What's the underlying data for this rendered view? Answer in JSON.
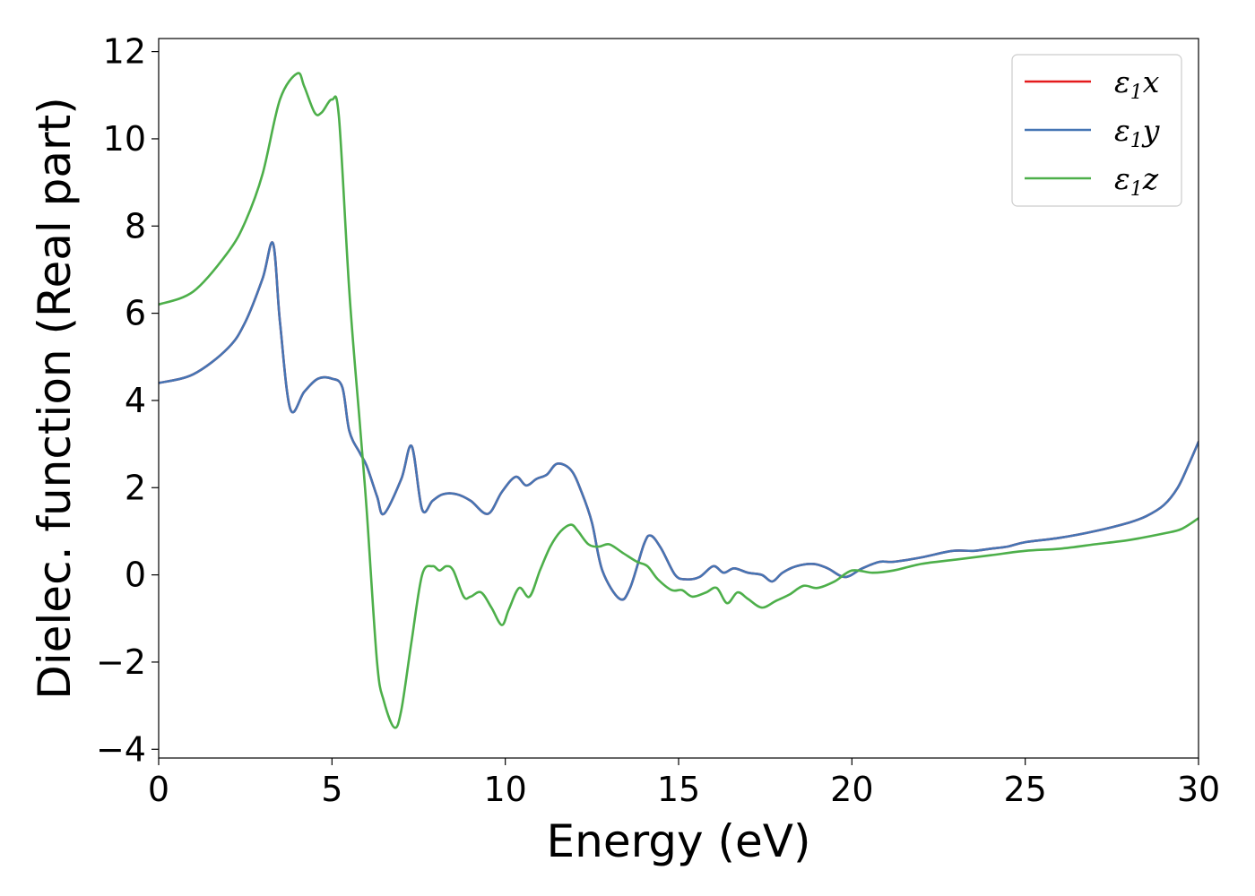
{
  "chart_data": {
    "type": "line",
    "title": "",
    "xlabel": "Energy (eV)",
    "ylabel": "Dielec. function (Real part)",
    "xlim": [
      0,
      30
    ],
    "ylim": [
      -4.2,
      12.3
    ],
    "xticks": [
      0,
      5,
      10,
      15,
      20,
      25,
      30
    ],
    "yticks": [
      -4,
      -2,
      0,
      2,
      4,
      6,
      8,
      10,
      12
    ],
    "xtick_labels": [
      "0",
      "5",
      "10",
      "15",
      "20",
      "25",
      "30"
    ],
    "ytick_labels": [
      "−4",
      "−2",
      "0",
      "2",
      "4",
      "6",
      "8",
      "10",
      "12"
    ],
    "grid": false,
    "legend_position": "top-right",
    "series": [
      {
        "name": "ε1x",
        "legend_main": "ε",
        "legend_sub": "1",
        "legend_var": "x",
        "color": "#e41a1c",
        "x": [
          0,
          1,
          2,
          2.5,
          3,
          3.3,
          3.5,
          3.8,
          4.2,
          4.6,
          5.0,
          5.3,
          5.5,
          5.8,
          6.0,
          6.3,
          6.5,
          7.0,
          7.3,
          7.6,
          7.9,
          8.2,
          8.6,
          9.0,
          9.5,
          9.9,
          10.3,
          10.6,
          10.9,
          11.2,
          11.5,
          11.9,
          12.2,
          12.5,
          12.8,
          13.3,
          13.6,
          14.0,
          14.2,
          14.5,
          14.9,
          15.2,
          15.6,
          16.0,
          16.3,
          16.6,
          17.0,
          17.4,
          17.7,
          18.0,
          18.4,
          18.9,
          19.3,
          19.8,
          20.3,
          20.8,
          21.2,
          22.0,
          22.9,
          23.5,
          24.0,
          24.5,
          25.0,
          26.0,
          27.0,
          28.0,
          28.5,
          29.0,
          29.4,
          29.7,
          30.0
        ],
        "values": [
          4.4,
          4.6,
          5.2,
          5.8,
          6.8,
          7.6,
          5.8,
          3.8,
          4.2,
          4.5,
          4.5,
          4.3,
          3.3,
          2.8,
          2.5,
          1.8,
          1.4,
          2.2,
          2.95,
          1.5,
          1.7,
          1.85,
          1.85,
          1.7,
          1.4,
          1.9,
          2.25,
          2.05,
          2.2,
          2.3,
          2.55,
          2.4,
          1.9,
          1.2,
          0.1,
          -0.55,
          -0.3,
          0.7,
          0.9,
          0.6,
          0.0,
          -0.1,
          -0.05,
          0.2,
          0.05,
          0.15,
          0.05,
          0.0,
          -0.15,
          0.05,
          0.2,
          0.25,
          0.15,
          -0.05,
          0.15,
          0.3,
          0.3,
          0.4,
          0.55,
          0.55,
          0.6,
          0.65,
          0.75,
          0.85,
          1.0,
          1.2,
          1.35,
          1.6,
          2.0,
          2.5,
          3.05
        ]
      },
      {
        "name": "ε1y",
        "legend_main": "ε",
        "legend_sub": "1",
        "legend_var": "y",
        "color": "#4575b4",
        "x": [
          0,
          1,
          2,
          2.5,
          3,
          3.3,
          3.5,
          3.8,
          4.2,
          4.6,
          5.0,
          5.3,
          5.5,
          5.8,
          6.0,
          6.3,
          6.5,
          7.0,
          7.3,
          7.6,
          7.9,
          8.2,
          8.6,
          9.0,
          9.5,
          9.9,
          10.3,
          10.6,
          10.9,
          11.2,
          11.5,
          11.9,
          12.2,
          12.5,
          12.8,
          13.3,
          13.6,
          14.0,
          14.2,
          14.5,
          14.9,
          15.2,
          15.6,
          16.0,
          16.3,
          16.6,
          17.0,
          17.4,
          17.7,
          18.0,
          18.4,
          18.9,
          19.3,
          19.8,
          20.3,
          20.8,
          21.2,
          22.0,
          22.9,
          23.5,
          24.0,
          24.5,
          25.0,
          26.0,
          27.0,
          28.0,
          28.5,
          29.0,
          29.4,
          29.7,
          30.0
        ],
        "values": [
          4.4,
          4.6,
          5.2,
          5.8,
          6.8,
          7.6,
          5.8,
          3.8,
          4.2,
          4.5,
          4.5,
          4.3,
          3.3,
          2.8,
          2.5,
          1.8,
          1.4,
          2.2,
          2.95,
          1.5,
          1.7,
          1.85,
          1.85,
          1.7,
          1.4,
          1.9,
          2.25,
          2.05,
          2.2,
          2.3,
          2.55,
          2.4,
          1.9,
          1.2,
          0.1,
          -0.55,
          -0.3,
          0.7,
          0.9,
          0.6,
          0.0,
          -0.1,
          -0.05,
          0.2,
          0.05,
          0.15,
          0.05,
          0.0,
          -0.15,
          0.05,
          0.2,
          0.25,
          0.15,
          -0.05,
          0.15,
          0.3,
          0.3,
          0.4,
          0.55,
          0.55,
          0.6,
          0.65,
          0.75,
          0.85,
          1.0,
          1.2,
          1.35,
          1.6,
          2.0,
          2.5,
          3.05
        ]
      },
      {
        "name": "ε1z",
        "legend_main": "ε",
        "legend_sub": "1",
        "legend_var": "z",
        "color": "#4daf4a",
        "x": [
          0,
          1,
          2,
          2.5,
          3,
          3.5,
          4.0,
          4.2,
          4.5,
          4.7,
          5.0,
          5.2,
          5.5,
          5.8,
          6.0,
          6.3,
          6.5,
          6.8,
          7.0,
          7.3,
          7.6,
          7.9,
          8.1,
          8.3,
          8.5,
          8.8,
          9.0,
          9.3,
          9.6,
          9.9,
          10.1,
          10.4,
          10.7,
          11.0,
          11.3,
          11.6,
          11.9,
          12.1,
          12.4,
          12.7,
          13.0,
          13.4,
          13.8,
          14.1,
          14.4,
          14.8,
          15.1,
          15.4,
          15.8,
          16.1,
          16.4,
          16.7,
          17.0,
          17.4,
          17.8,
          18.2,
          18.6,
          19.0,
          19.5,
          20.0,
          20.6,
          21.2,
          22.0,
          23.0,
          24.0,
          25.0,
          26.0,
          27.0,
          28.0,
          29.0,
          29.5,
          30.0
        ],
        "values": [
          6.2,
          6.5,
          7.4,
          8.1,
          9.2,
          10.9,
          11.5,
          11.2,
          10.6,
          10.6,
          10.9,
          10.5,
          6.5,
          3.5,
          1.5,
          -2.0,
          -2.9,
          -3.5,
          -3.1,
          -1.5,
          0.0,
          0.2,
          0.1,
          0.2,
          0.1,
          -0.5,
          -0.5,
          -0.4,
          -0.75,
          -1.15,
          -0.8,
          -0.3,
          -0.5,
          0.1,
          0.65,
          1.0,
          1.15,
          1.0,
          0.7,
          0.65,
          0.7,
          0.5,
          0.3,
          0.2,
          -0.1,
          -0.35,
          -0.35,
          -0.5,
          -0.4,
          -0.3,
          -0.65,
          -0.4,
          -0.55,
          -0.75,
          -0.6,
          -0.45,
          -0.25,
          -0.3,
          -0.15,
          0.1,
          0.05,
          0.1,
          0.25,
          0.35,
          0.45,
          0.55,
          0.6,
          0.7,
          0.8,
          0.95,
          1.05,
          1.3
        ]
      }
    ]
  }
}
